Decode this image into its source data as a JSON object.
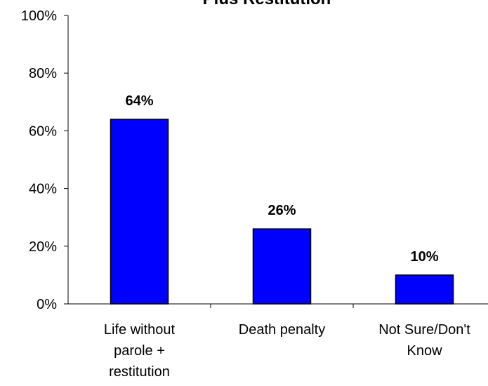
{
  "chart_data": {
    "type": "bar",
    "title": "Plus Restitution",
    "categories": [
      "Life without parole + restitution",
      "Death penalty",
      "Not Sure/Don't Know"
    ],
    "values": [
      64,
      26,
      10
    ],
    "value_labels": [
      "64%",
      "26%",
      "10%"
    ],
    "color": "#0000ff",
    "ylim": [
      0,
      100
    ],
    "yticks": [
      {
        "value": 0,
        "label": "0%"
      },
      {
        "value": 20,
        "label": "20%"
      },
      {
        "value": 40,
        "label": "40%"
      },
      {
        "value": 60,
        "label": "60%"
      },
      {
        "value": 80,
        "label": "80%"
      },
      {
        "value": 100,
        "label": "100%"
      }
    ]
  }
}
